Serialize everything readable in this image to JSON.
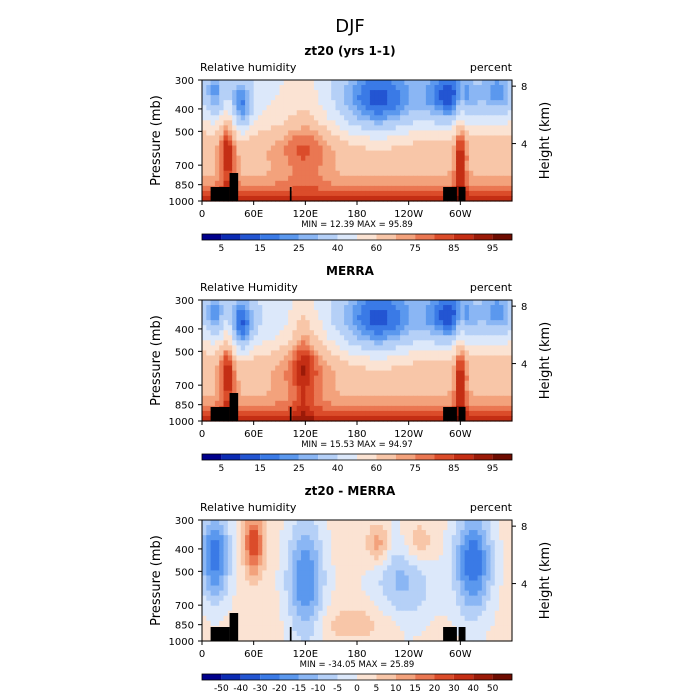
{
  "figure": {
    "title": "DJF"
  },
  "colors": {
    "rh": [
      "#00008c",
      "#0b2bb4",
      "#2355d2",
      "#3a7ae6",
      "#5b98ee",
      "#8ab6f4",
      "#b5d0f7",
      "#dce8fa",
      "#fbe3d3",
      "#f8c6a8",
      "#f3a27c",
      "#ea7752",
      "#db4c2a",
      "#c42e14",
      "#9b1a08",
      "#6e0c00"
    ],
    "diff": [
      "#00008c",
      "#0b2bb4",
      "#2355d2",
      "#3a7ae6",
      "#5b98ee",
      "#8ab6f4",
      "#b5d0f7",
      "#dce8fa",
      "#fbe3d3",
      "#f8c6a8",
      "#f3a27c",
      "#ea7752",
      "#db4c2a",
      "#c42e14",
      "#9b1a08",
      "#6e0c00"
    ],
    "terrain": "#000000"
  },
  "chart_data": [
    {
      "type": "heatmap",
      "title": "zt20 (yrs 1-1)",
      "left_label": "Relative humidity",
      "right_label": "percent",
      "ylabel": "Pressure (mb)",
      "y2label": "Height (km)",
      "y_ticks": [
        "300",
        "400",
        "500",
        "700",
        "850",
        "1000"
      ],
      "y_tick_values": [
        300,
        400,
        500,
        700,
        850,
        1000
      ],
      "y2_ticks": [
        "8",
        "4"
      ],
      "y2_tick_values": [
        8,
        4
      ],
      "x_ticks": [
        "0",
        "60E",
        "120E",
        "180",
        "120W",
        "60W"
      ],
      "x_tick_values": [
        0,
        60,
        120,
        180,
        240,
        300
      ],
      "xlim": [
        0,
        360
      ],
      "stats": "MIN =   12.39   MAX =   95.89",
      "min": 12.39,
      "max": 95.89,
      "colorbar_labels": [
        "5",
        "15",
        "25",
        "40",
        "60",
        "75",
        "85",
        "95"
      ],
      "kind": "rh"
    },
    {
      "type": "heatmap",
      "title": "MERRA",
      "left_label": "Relative Humidity",
      "right_label": "percent",
      "ylabel": "Pressure (mb)",
      "y2label": "Height (km)",
      "y_ticks": [
        "300",
        "400",
        "500",
        "700",
        "850",
        "1000"
      ],
      "y_tick_values": [
        300,
        400,
        500,
        700,
        850,
        1000
      ],
      "y2_ticks": [
        "8",
        "4"
      ],
      "y2_tick_values": [
        8,
        4
      ],
      "x_ticks": [
        "0",
        "60E",
        "120E",
        "180",
        "120W",
        "60W"
      ],
      "x_tick_values": [
        0,
        60,
        120,
        180,
        240,
        300
      ],
      "xlim": [
        0,
        360
      ],
      "stats": "MIN =   15.53   MAX =   94.97",
      "min": 15.53,
      "max": 94.97,
      "colorbar_labels": [
        "5",
        "15",
        "25",
        "40",
        "60",
        "75",
        "85",
        "95"
      ],
      "kind": "rh"
    },
    {
      "type": "heatmap",
      "title": "zt20 - MERRA",
      "left_label": "Relative humidity",
      "right_label": "percent",
      "ylabel": "Pressure (mb)",
      "y2label": "Height (km)",
      "y_ticks": [
        "300",
        "400",
        "500",
        "700",
        "850",
        "1000"
      ],
      "y_tick_values": [
        300,
        400,
        500,
        700,
        850,
        1000
      ],
      "y2_ticks": [
        "8",
        "4"
      ],
      "y2_tick_values": [
        8,
        4
      ],
      "x_ticks": [
        "0",
        "60E",
        "120E",
        "180",
        "120W",
        "60W"
      ],
      "x_tick_values": [
        0,
        60,
        120,
        180,
        240,
        300
      ],
      "xlim": [
        0,
        360
      ],
      "stats": "MIN =  -34.05   MAX =   25.89",
      "min": -34.05,
      "max": 25.89,
      "colorbar_labels": [
        "-50",
        "-40",
        "-30",
        "-20",
        "-15",
        "-10",
        "-5",
        "0",
        "5",
        "10",
        "15",
        "20",
        "30",
        "40",
        "50"
      ],
      "kind": "diff"
    }
  ]
}
